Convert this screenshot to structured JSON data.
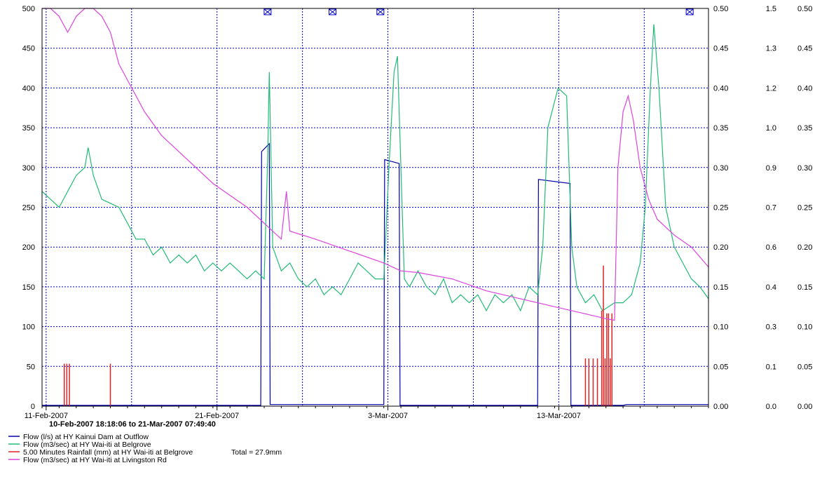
{
  "chart_data": {
    "type": "line",
    "title": "",
    "date_range": "10-Feb-2007 18:18:06 to 21-Mar-2007 07:49:40",
    "x_ticks": [
      "11-Feb-2007",
      "21-Feb-2007",
      "3-Mar-2007",
      "13-Mar-2007"
    ],
    "x_range_days": [
      0,
      39
    ],
    "x_major_tick_days": [
      0.24,
      10.24,
      20.24,
      30.24
    ],
    "grid": true,
    "legend_position": "bottom-left",
    "axes": [
      {
        "id": "y1",
        "side": "left",
        "range": [
          0,
          500
        ],
        "ticks": [
          "0",
          "50",
          "100",
          "150",
          "200",
          "250",
          "300",
          "350",
          "400",
          "450",
          "500"
        ]
      },
      {
        "id": "y2",
        "side": "right",
        "range": [
          0,
          0.5
        ],
        "ticks": [
          "0.00",
          "0.05",
          "0.10",
          "0.15",
          "0.20",
          "0.25",
          "0.30",
          "0.35",
          "0.40",
          "0.45",
          "0.50"
        ]
      },
      {
        "id": "y3",
        "side": "right",
        "range": [
          0,
          1.5
        ],
        "ticks": [
          "0.0",
          "0.1",
          "0.3",
          "0.4",
          "0.6",
          "0.7",
          "0.9",
          "1.0",
          "1.2",
          "1.3",
          "1.5"
        ]
      },
      {
        "id": "y4",
        "side": "right",
        "range": [
          0,
          0.5
        ],
        "ticks": [
          "0.00",
          "0.05",
          "0.10",
          "0.15",
          "0.20",
          "0.25",
          "0.30",
          "0.35",
          "0.40",
          "0.45",
          "0.50"
        ]
      }
    ],
    "series": [
      {
        "name": "Flow (l/s) at HY Kainui Dam at Outflow",
        "color": "#0000aa",
        "axis": "y1",
        "points": [
          [
            0,
            1
          ],
          [
            12.8,
            1
          ],
          [
            12.85,
            320
          ],
          [
            13.3,
            330
          ],
          [
            13.35,
            2
          ],
          [
            20.0,
            2
          ],
          [
            20.05,
            310
          ],
          [
            20.9,
            305
          ],
          [
            20.95,
            1
          ],
          [
            29.0,
            1
          ],
          [
            29.05,
            285
          ],
          [
            30.9,
            280
          ],
          [
            30.95,
            1
          ],
          [
            34.0,
            1
          ],
          [
            34.2,
            2
          ],
          [
            39,
            2
          ]
        ]
      },
      {
        "name": "Flow (m3/sec) at HY Wai-iti at Belgrove",
        "color": "#22bb77",
        "axis": "y4",
        "points": [
          [
            0,
            0.27
          ],
          [
            0.5,
            0.26
          ],
          [
            1.0,
            0.25
          ],
          [
            1.5,
            0.27
          ],
          [
            2.0,
            0.29
          ],
          [
            2.5,
            0.3
          ],
          [
            2.7,
            0.325
          ],
          [
            3.0,
            0.29
          ],
          [
            3.5,
            0.26
          ],
          [
            4.0,
            0.255
          ],
          [
            4.5,
            0.25
          ],
          [
            5.0,
            0.23
          ],
          [
            5.5,
            0.21
          ],
          [
            6.0,
            0.21
          ],
          [
            6.5,
            0.19
          ],
          [
            7.0,
            0.2
          ],
          [
            7.5,
            0.18
          ],
          [
            8.0,
            0.19
          ],
          [
            8.5,
            0.18
          ],
          [
            9.0,
            0.19
          ],
          [
            9.5,
            0.17
          ],
          [
            10.0,
            0.18
          ],
          [
            10.5,
            0.17
          ],
          [
            11.0,
            0.18
          ],
          [
            11.5,
            0.17
          ],
          [
            12.0,
            0.16
          ],
          [
            12.5,
            0.17
          ],
          [
            13.0,
            0.16
          ],
          [
            13.2,
            0.31
          ],
          [
            13.3,
            0.42
          ],
          [
            13.5,
            0.2
          ],
          [
            14.0,
            0.17
          ],
          [
            14.5,
            0.18
          ],
          [
            15.0,
            0.16
          ],
          [
            15.5,
            0.15
          ],
          [
            16.0,
            0.16
          ],
          [
            16.5,
            0.14
          ],
          [
            17.0,
            0.15
          ],
          [
            17.5,
            0.14
          ],
          [
            18.0,
            0.16
          ],
          [
            18.5,
            0.18
          ],
          [
            19.0,
            0.17
          ],
          [
            19.5,
            0.16
          ],
          [
            20.0,
            0.16
          ],
          [
            20.3,
            0.3
          ],
          [
            20.6,
            0.42
          ],
          [
            20.8,
            0.44
          ],
          [
            21.0,
            0.3
          ],
          [
            21.2,
            0.16
          ],
          [
            21.5,
            0.15
          ],
          [
            22.0,
            0.17
          ],
          [
            22.5,
            0.15
          ],
          [
            23.0,
            0.14
          ],
          [
            23.5,
            0.16
          ],
          [
            24.0,
            0.13
          ],
          [
            24.5,
            0.14
          ],
          [
            25.0,
            0.13
          ],
          [
            25.5,
            0.14
          ],
          [
            26.0,
            0.12
          ],
          [
            26.5,
            0.14
          ],
          [
            27.0,
            0.13
          ],
          [
            27.5,
            0.14
          ],
          [
            28.0,
            0.12
          ],
          [
            28.5,
            0.15
          ],
          [
            29.0,
            0.14
          ],
          [
            29.3,
            0.2
          ],
          [
            29.6,
            0.35
          ],
          [
            30.2,
            0.4
          ],
          [
            30.7,
            0.39
          ],
          [
            31.0,
            0.2
          ],
          [
            31.3,
            0.15
          ],
          [
            31.8,
            0.13
          ],
          [
            32.3,
            0.14
          ],
          [
            32.8,
            0.12
          ],
          [
            33.5,
            0.13
          ],
          [
            34.0,
            0.13
          ],
          [
            34.5,
            0.14
          ],
          [
            35.0,
            0.18
          ],
          [
            35.3,
            0.25
          ],
          [
            35.6,
            0.4
          ],
          [
            35.8,
            0.48
          ],
          [
            36.1,
            0.4
          ],
          [
            36.5,
            0.25
          ],
          [
            37.0,
            0.2
          ],
          [
            37.5,
            0.18
          ],
          [
            38.0,
            0.16
          ],
          [
            38.5,
            0.15
          ],
          [
            39,
            0.135
          ]
        ]
      },
      {
        "name": "5.00 Minutes Rainfall (mm) at HY Wai-iti at Belgrove",
        "total": "Total = 27.9mm",
        "color": "#dd2222",
        "axis": "y3",
        "bars": [
          [
            1.3,
            0.16
          ],
          [
            1.45,
            0.16
          ],
          [
            1.6,
            0.16
          ],
          [
            4.0,
            0.16
          ],
          [
            31.8,
            0.18
          ],
          [
            32.0,
            0.18
          ],
          [
            32.25,
            0.18
          ],
          [
            32.5,
            0.18
          ],
          [
            32.75,
            0.36
          ],
          [
            32.85,
            0.53
          ],
          [
            32.95,
            0.18
          ],
          [
            33.05,
            0.35
          ],
          [
            33.15,
            0.35
          ],
          [
            33.25,
            0.18
          ],
          [
            33.35,
            0.35
          ]
        ]
      },
      {
        "name": "Flow (m3/sec) at HY Wai-iti at Livingston Rd",
        "color": "#dd44dd",
        "axis": "y2",
        "points": [
          [
            0,
            0.5
          ],
          [
            0.5,
            0.5
          ],
          [
            1.0,
            0.49
          ],
          [
            1.5,
            0.47
          ],
          [
            2.0,
            0.49
          ],
          [
            2.5,
            0.5
          ],
          [
            3.0,
            0.5
          ],
          [
            3.5,
            0.49
          ],
          [
            4.0,
            0.47
          ],
          [
            4.5,
            0.43
          ],
          [
            5.0,
            0.41
          ],
          [
            6.0,
            0.37
          ],
          [
            7.0,
            0.34
          ],
          [
            8.0,
            0.32
          ],
          [
            9.0,
            0.3
          ],
          [
            10.0,
            0.28
          ],
          [
            11.0,
            0.265
          ],
          [
            12.0,
            0.25
          ],
          [
            13.0,
            0.23
          ],
          [
            14.0,
            0.21
          ],
          [
            14.3,
            0.27
          ],
          [
            14.5,
            0.22
          ],
          [
            16.0,
            0.21
          ],
          [
            18.0,
            0.195
          ],
          [
            20.0,
            0.18
          ],
          [
            21.0,
            0.17
          ],
          [
            22.0,
            0.168
          ],
          [
            24.0,
            0.16
          ],
          [
            26.0,
            0.145
          ],
          [
            28.0,
            0.135
          ],
          [
            30.0,
            0.125
          ],
          [
            32.0,
            0.115
          ],
          [
            33.0,
            0.11
          ],
          [
            33.5,
            0.108
          ],
          [
            33.7,
            0.3
          ],
          [
            34.0,
            0.37
          ],
          [
            34.3,
            0.39
          ],
          [
            34.6,
            0.36
          ],
          [
            35.0,
            0.3
          ],
          [
            35.5,
            0.26
          ],
          [
            36.0,
            0.235
          ],
          [
            37.0,
            0.215
          ],
          [
            38.0,
            0.2
          ],
          [
            39,
            0.175
          ]
        ]
      }
    ],
    "markers_days": [
      13.2,
      17.0,
      19.8,
      37.9
    ]
  }
}
